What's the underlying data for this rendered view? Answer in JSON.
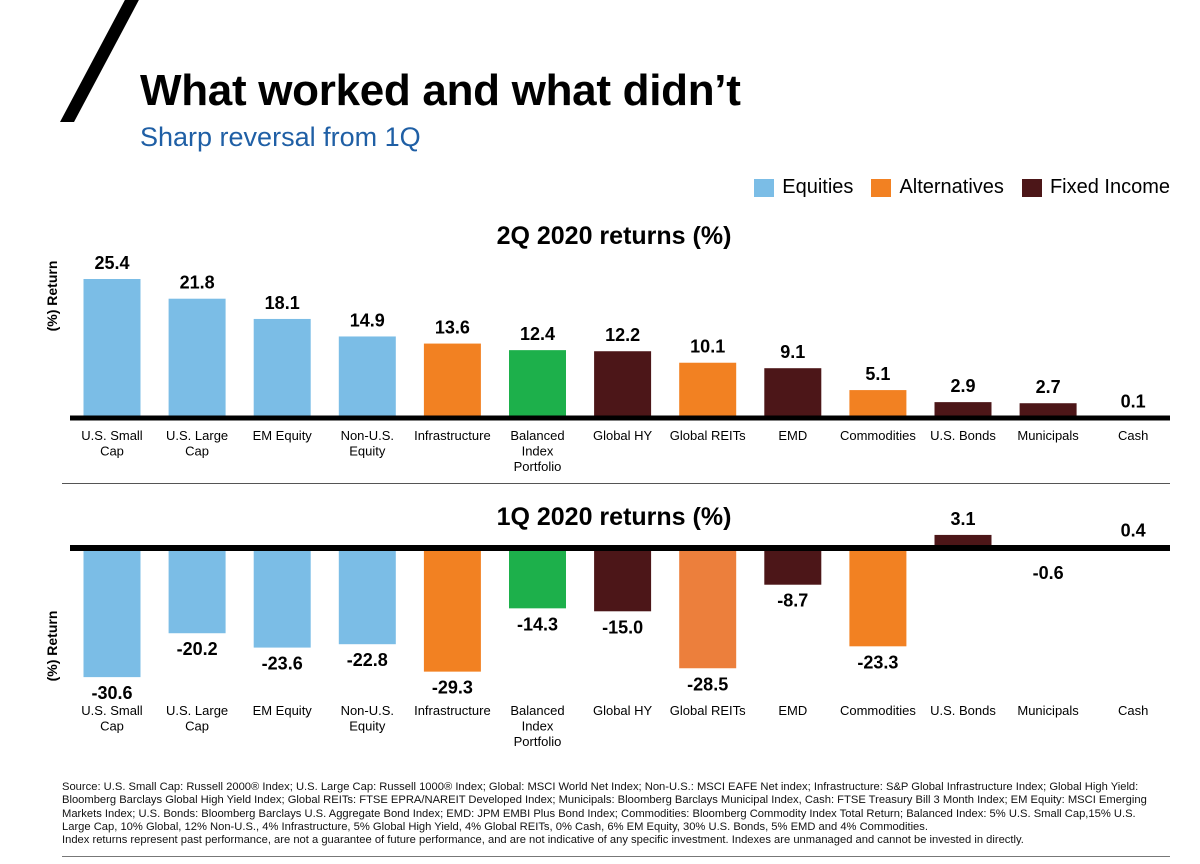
{
  "header": {
    "title": "What worked and what didn’t",
    "subtitle": "Sharp reversal from 1Q"
  },
  "legend": [
    {
      "label": "Equities",
      "color": "#7bbde6"
    },
    {
      "label": "Alternatives",
      "color": "#f28122"
    },
    {
      "label": "Fixed Income",
      "color": "#4c1618"
    }
  ],
  "chart_data": [
    {
      "type": "bar",
      "title": "2Q 2020 returns (%)",
      "ylabel": "(%) Return",
      "xlabel": "",
      "categories": [
        "U.S. Small Cap",
        "U.S. Large Cap",
        "EM Equity",
        "Non-U.S. Equity",
        "Infrastructure",
        "Balanced Index Portfolio",
        "Global HY",
        "Global REITs",
        "EMD",
        "Commodities",
        "U.S. Bonds",
        "Municipals",
        "Cash"
      ],
      "values": [
        25.4,
        21.8,
        18.1,
        14.9,
        13.6,
        12.4,
        12.2,
        10.1,
        9.1,
        5.1,
        2.9,
        2.7,
        0.1
      ],
      "value_labels": [
        "25.4",
        "21.8",
        "18.1",
        "14.9",
        "13.6",
        "12.4",
        "12.2",
        "10.1",
        "9.1",
        "5.1",
        "2.9",
        "2.7",
        "0.1"
      ],
      "bar_colors": [
        "#7bbde6",
        "#7bbde6",
        "#7bbde6",
        "#7bbde6",
        "#f28122",
        "#1db04b",
        "#4c1618",
        "#f28122",
        "#4c1618",
        "#f28122",
        "#4c1618",
        "#4c1618",
        "#4c1618"
      ],
      "ylim": [
        0,
        25.4
      ]
    },
    {
      "type": "bar",
      "title": "1Q 2020 returns (%)",
      "ylabel": "(%) Return",
      "xlabel": "",
      "categories": [
        "U.S. Small Cap",
        "U.S. Large Cap",
        "EM Equity",
        "Non-U.S. Equity",
        "Infrastructure",
        "Balanced Index Portfolio",
        "Global HY",
        "Global REITs",
        "EMD",
        "Commodities",
        "U.S. Bonds",
        "Municipals",
        "Cash"
      ],
      "values": [
        -30.6,
        -20.2,
        -23.6,
        -22.8,
        -29.3,
        -14.3,
        -15.0,
        -28.5,
        -8.7,
        -23.3,
        3.1,
        -0.6,
        0.4
      ],
      "value_labels": [
        "-30.6",
        "-20.2",
        "-23.6",
        "-22.8",
        "-29.3",
        "-14.3",
        "-15.0",
        "-28.5",
        "-8.7",
        "-23.3",
        "3.1",
        "-0.6",
        "0.4"
      ],
      "bar_colors": [
        "#7bbde6",
        "#7bbde6",
        "#7bbde6",
        "#7bbde6",
        "#f28122",
        "#1db04b",
        "#4c1618",
        "#ec7f3c",
        "#4c1618",
        "#f28122",
        "#4c1618",
        "#4c1618",
        "#4c1618"
      ],
      "ylim": [
        -30.6,
        3.1
      ]
    }
  ],
  "footnote": {
    "source": "Source: U.S. Small Cap: Russell 2000® Index; U.S. Large Cap: Russell 1000® Index; Global: MSCI World Net Index; Non-U.S.: MSCI EAFE Net index; Infrastructure: S&P Global Infrastructure Index; Global High Yield: Bloomberg Barclays Global High Yield Index; Global REITs: FTSE EPRA/NAREIT Developed Index; Municipals: Bloomberg Barclays Municipal Index, Cash: FTSE Treasury Bill 3 Month Index; EM Equity: MSCI Emerging Markets Index; U.S. Bonds: Bloomberg Barclays U.S. Aggregate Bond Index; EMD: JPM EMBI Plus Bond Index; Commodities: Bloomberg Commodity Index Total Return; Balanced Index: 5% U.S. Small Cap,15% U.S. Large Cap, 10% Global, 12% Non-U.S., 4% Infrastructure, 5% Global High Yield, 4% Global REITs, 0% Cash, 6% EM Equity, 30% U.S. Bonds, 5% EMD and 4% Commodities.",
    "disclaimer": "Index returns represent past performance, are not a guarantee of future performance, and are not indicative of any specific investment. Indexes are unmanaged and cannot be invested in directly."
  }
}
